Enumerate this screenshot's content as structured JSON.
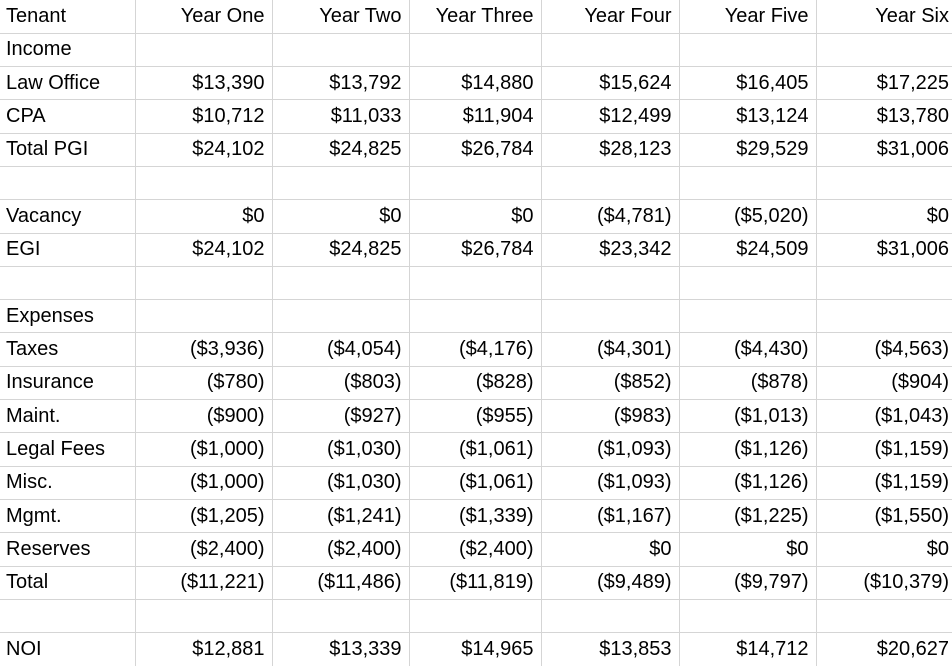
{
  "table": {
    "grid_color": "#d5d5d5",
    "text_color": "#000000",
    "background_color": "#ffffff",
    "columns": [
      "Tenant",
      "Year One",
      "Year Two",
      "Year Three",
      "Year Four",
      "Year Five",
      "Year Six"
    ],
    "rows": [
      {
        "label": "Income",
        "values": [
          "",
          "",
          "",
          "",
          "",
          ""
        ]
      },
      {
        "label": "Law Office",
        "values": [
          "$13,390",
          "$13,792",
          "$14,880",
          "$15,624",
          "$16,405",
          "$17,225"
        ]
      },
      {
        "label": "CPA",
        "values": [
          "$10,712",
          "$11,033",
          "$11,904",
          "$12,499",
          "$13,124",
          "$13,780"
        ]
      },
      {
        "label": "Total PGI",
        "values": [
          "$24,102",
          "$24,825",
          "$26,784",
          "$28,123",
          "$29,529",
          "$31,006"
        ]
      },
      {
        "label": "",
        "values": [
          "",
          "",
          "",
          "",
          "",
          ""
        ]
      },
      {
        "label": "Vacancy",
        "values": [
          "$0",
          "$0",
          "$0",
          "($4,781)",
          "($5,020)",
          "$0"
        ]
      },
      {
        "label": "EGI",
        "values": [
          "$24,102",
          "$24,825",
          "$26,784",
          "$23,342",
          "$24,509",
          "$31,006"
        ]
      },
      {
        "label": "",
        "values": [
          "",
          "",
          "",
          "",
          "",
          ""
        ]
      },
      {
        "label": "Expenses",
        "values": [
          "",
          "",
          "",
          "",
          "",
          ""
        ]
      },
      {
        "label": "Taxes",
        "values": [
          "($3,936)",
          "($4,054)",
          "($4,176)",
          "($4,301)",
          "($4,430)",
          "($4,563)"
        ]
      },
      {
        "label": "Insurance",
        "values": [
          "($780)",
          "($803)",
          "($828)",
          "($852)",
          "($878)",
          "($904)"
        ]
      },
      {
        "label": "Maint.",
        "values": [
          "($900)",
          "($927)",
          "($955)",
          "($983)",
          "($1,013)",
          "($1,043)"
        ]
      },
      {
        "label": "Legal Fees",
        "values": [
          "($1,000)",
          "($1,030)",
          "($1,061)",
          "($1,093)",
          "($1,126)",
          "($1,159)"
        ]
      },
      {
        "label": "Misc.",
        "values": [
          "($1,000)",
          "($1,030)",
          "($1,061)",
          "($1,093)",
          "($1,126)",
          "($1,159)"
        ]
      },
      {
        "label": "Mgmt.",
        "values": [
          "($1,205)",
          "($1,241)",
          "($1,339)",
          "($1,167)",
          "($1,225)",
          "($1,550)"
        ]
      },
      {
        "label": "Reserves",
        "values": [
          "($2,400)",
          "($2,400)",
          "($2,400)",
          "$0",
          "$0",
          "$0"
        ]
      },
      {
        "label": "Total",
        "values": [
          "($11,221)",
          "($11,486)",
          "($11,819)",
          "($9,489)",
          "($9,797)",
          "($10,379)"
        ]
      },
      {
        "label": "",
        "values": [
          "",
          "",
          "",
          "",
          "",
          ""
        ]
      },
      {
        "label": "NOI",
        "values": [
          "$12,881",
          "$13,339",
          "$14,965",
          "$13,853",
          "$14,712",
          "$20,627"
        ]
      }
    ]
  }
}
